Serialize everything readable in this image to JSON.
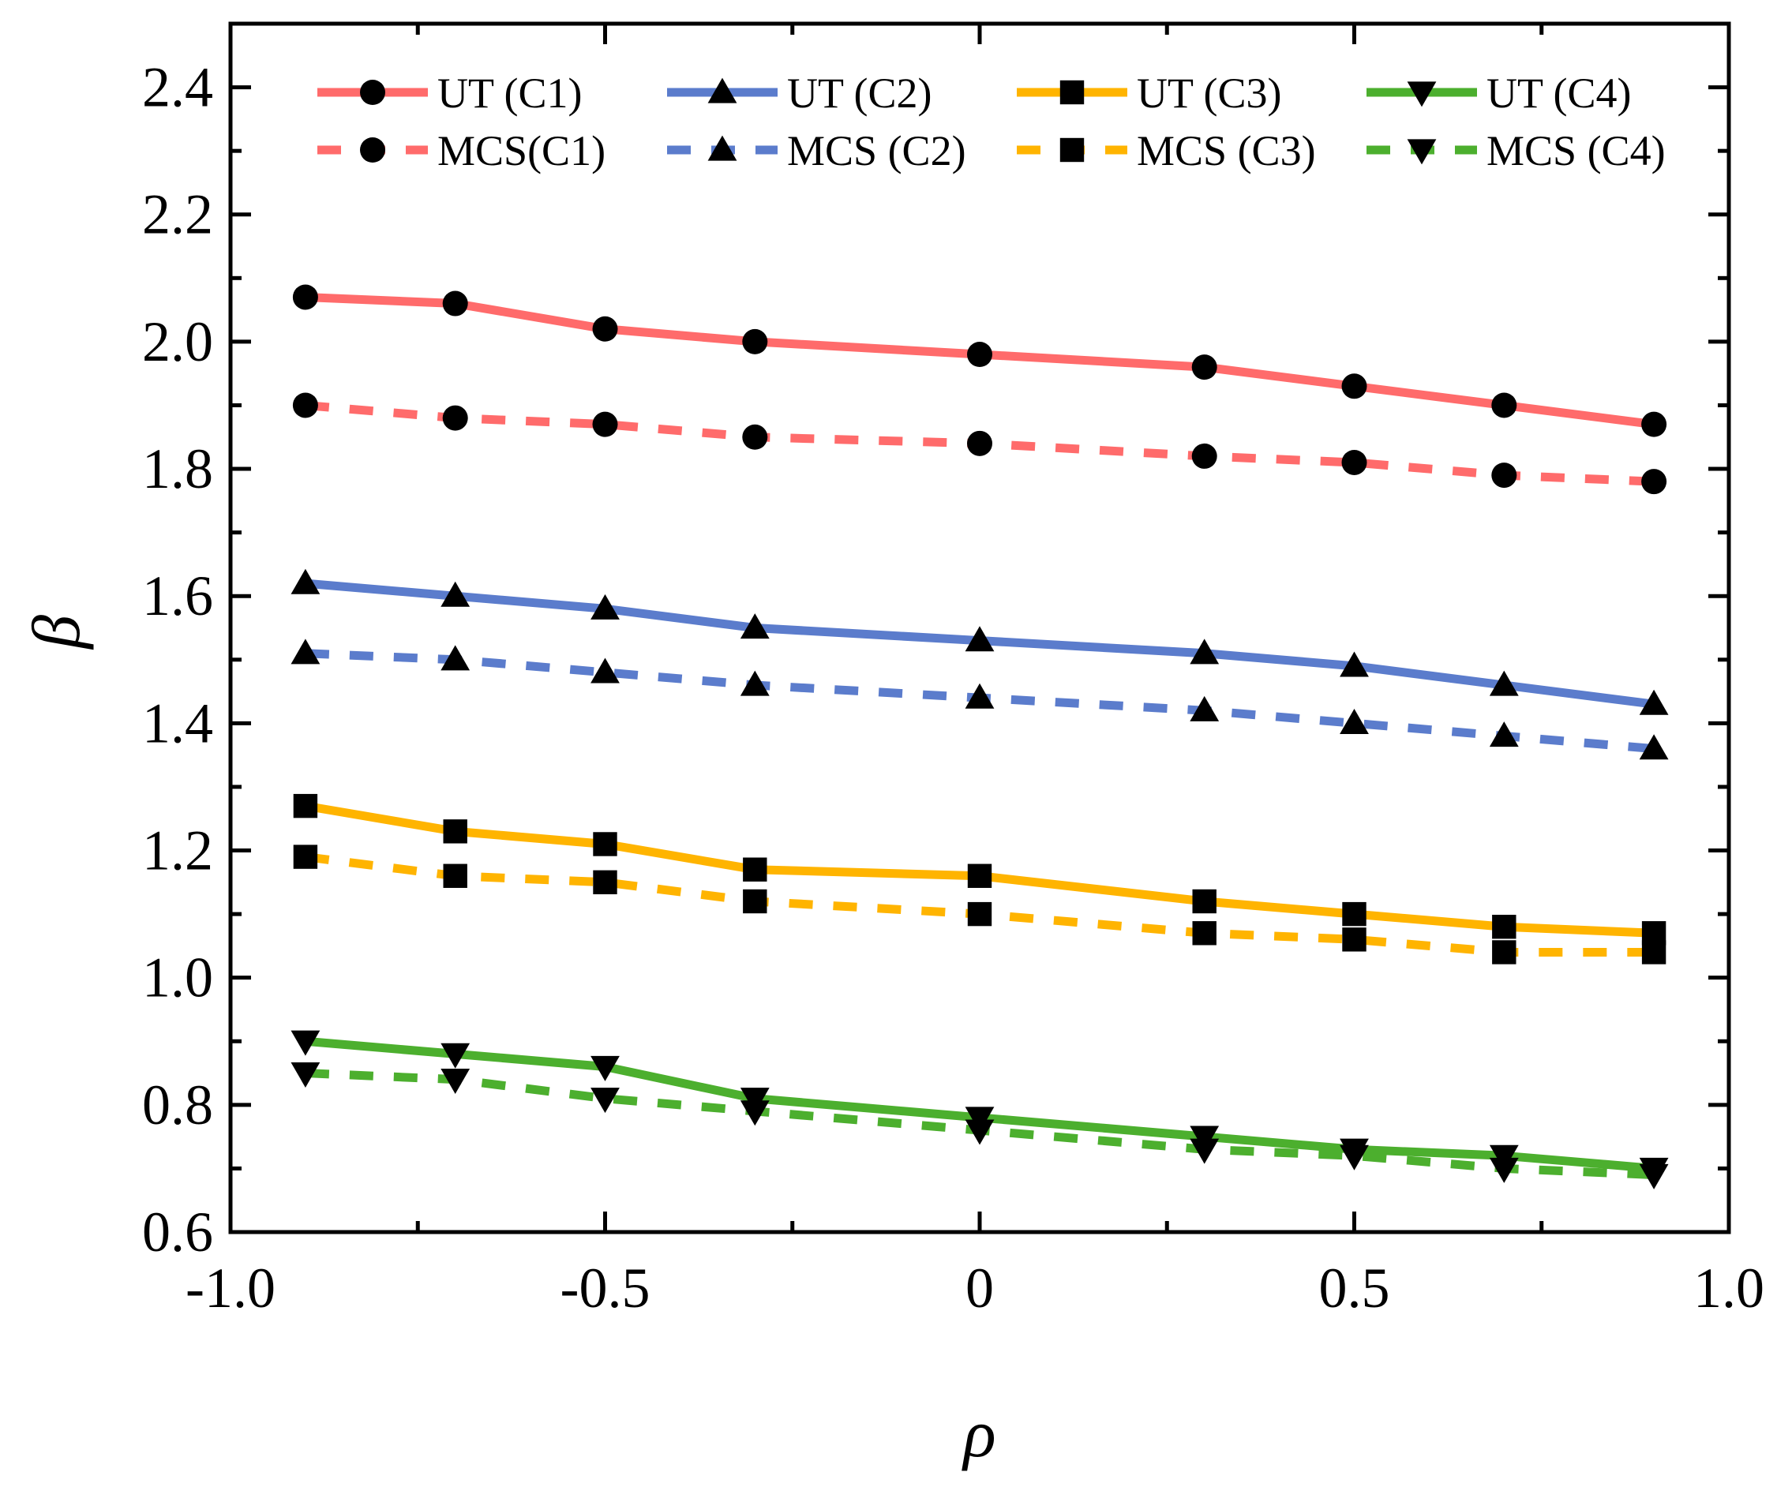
{
  "chart_data": {
    "type": "line",
    "title": "",
    "xlabel": "ρ",
    "ylabel": "β",
    "xlim": [
      -1.0,
      1.0
    ],
    "ylim": [
      0.6,
      2.5
    ],
    "x_ticks": [
      -1.0,
      -0.5,
      0,
      0.5,
      1.0
    ],
    "x_tick_labels": [
      "-1.0",
      "-0.5",
      "0",
      "0.5",
      "1.0"
    ],
    "y_ticks": [
      0.6,
      0.8,
      1.0,
      1.2,
      1.4,
      1.6,
      1.8,
      2.0,
      2.2,
      2.4
    ],
    "y_tick_labels": [
      "0.6",
      "0.8",
      "1.0",
      "1.2",
      "1.4",
      "1.6",
      "1.8",
      "2.0",
      "2.2",
      "2.4"
    ],
    "grid": false,
    "legend_position": "top",
    "x": [
      -0.9,
      -0.7,
      -0.5,
      -0.3,
      0,
      0.3,
      0.5,
      0.7,
      0.9
    ],
    "series": [
      {
        "name": "UT (C1)",
        "color": "#ff6b6b",
        "dash": "solid",
        "marker": "circle",
        "values": [
          2.07,
          2.06,
          2.02,
          2.0,
          1.98,
          1.96,
          1.93,
          1.9,
          1.87
        ]
      },
      {
        "name": "MCS(C1)",
        "color": "#ff6b6b",
        "dash": "dashed",
        "marker": "circle",
        "values": [
          1.9,
          1.88,
          1.87,
          1.85,
          1.84,
          1.82,
          1.81,
          1.79,
          1.78
        ]
      },
      {
        "name": "UT (C2)",
        "color": "#5b7ccc",
        "dash": "solid",
        "marker": "triangle-up",
        "values": [
          1.62,
          1.6,
          1.58,
          1.55,
          1.53,
          1.51,
          1.49,
          1.46,
          1.43
        ]
      },
      {
        "name": "MCS (C2)",
        "color": "#5b7ccc",
        "dash": "dashed",
        "marker": "triangle-up",
        "values": [
          1.51,
          1.5,
          1.48,
          1.46,
          1.44,
          1.42,
          1.4,
          1.38,
          1.36
        ]
      },
      {
        "name": "UT (C3)",
        "color": "#ffb400",
        "dash": "solid",
        "marker": "square",
        "values": [
          1.27,
          1.23,
          1.21,
          1.17,
          1.16,
          1.12,
          1.1,
          1.08,
          1.07
        ]
      },
      {
        "name": "MCS (C3)",
        "color": "#ffb400",
        "dash": "dashed",
        "marker": "square",
        "values": [
          1.19,
          1.16,
          1.15,
          1.12,
          1.1,
          1.07,
          1.06,
          1.04,
          1.04
        ]
      },
      {
        "name": "UT (C4)",
        "color": "#4caf2e",
        "dash": "solid",
        "marker": "triangle-down",
        "values": [
          0.9,
          0.88,
          0.86,
          0.81,
          0.78,
          0.75,
          0.73,
          0.72,
          0.7
        ]
      },
      {
        "name": "MCS (C4)",
        "color": "#4caf2e",
        "dash": "dashed",
        "marker": "triangle-down",
        "values": [
          0.85,
          0.84,
          0.81,
          0.79,
          0.76,
          0.73,
          0.72,
          0.7,
          0.69
        ]
      }
    ]
  }
}
